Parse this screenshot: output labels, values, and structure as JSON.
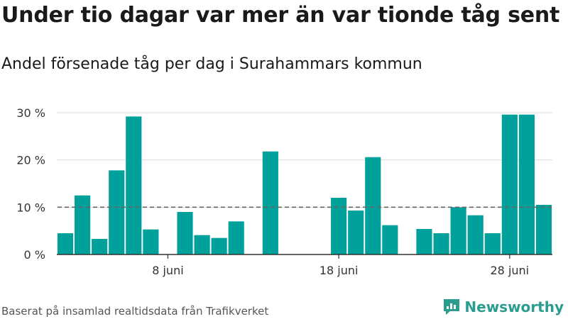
{
  "title": "Under tio dagar var mer än var tionde tåg sent",
  "subtitle": "Andel försenade tåg per dag i Surahammars kommun",
  "source": "Baserat på insamlad realtidsdata från Trafikverket",
  "brand": {
    "name": "Newsworthy",
    "icon": "newsworthy-logo-icon"
  },
  "colors": {
    "bar": "#00a19a",
    "grid": "#dddddd",
    "axis": "#333333",
    "reference": "#666666",
    "brand": "#2a9d8f"
  },
  "chart_data": {
    "type": "bar",
    "x": [
      2,
      3,
      4,
      5,
      6,
      7,
      9,
      10,
      11,
      12,
      14,
      18,
      19,
      20,
      21,
      23,
      24,
      25,
      26,
      27,
      28,
      29,
      30
    ],
    "values": [
      4.5,
      12.5,
      3.3,
      17.8,
      29.2,
      5.3,
      9.0,
      4.1,
      3.5,
      7.0,
      21.8,
      12.0,
      9.3,
      20.6,
      6.2,
      5.4,
      4.5,
      10.0,
      8.3,
      4.5,
      29.6,
      29.6,
      10.5
    ],
    "ylim": [
      0,
      30
    ],
    "y_ticks": [
      0,
      10,
      20,
      30
    ],
    "y_tick_labels": [
      "0 %",
      "10 %",
      "20 %",
      "30 %"
    ],
    "x_ticks": [
      8,
      18,
      28
    ],
    "x_tick_labels": [
      "8 juni",
      "18 juni",
      "28 juni"
    ],
    "xlim": [
      1.5,
      30.5
    ],
    "reference_line": 10,
    "grid": true,
    "xlabel": "",
    "ylabel": ""
  }
}
